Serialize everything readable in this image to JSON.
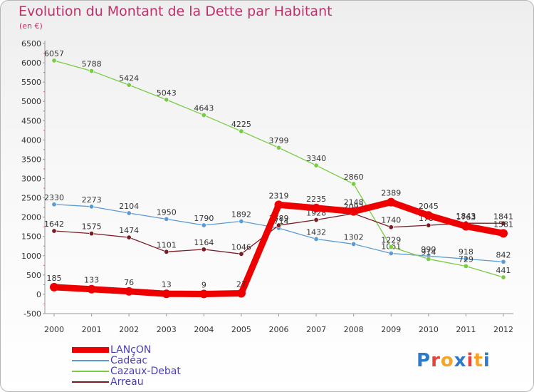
{
  "title": "Evolution du Montant de la Dette par Habitant",
  "subtitle": "(en €)",
  "logo": {
    "text": "Proxiti",
    "colors": [
      "#2e79c8",
      "#e8423c",
      "#f5a32a",
      "#2e79c8",
      "#e8423c",
      "#f5a32a",
      "#2e79c8"
    ]
  },
  "chart_data": {
    "type": "line",
    "title": "Evolution du Montant de la Dette par Habitant",
    "subtitle": "(en €)",
    "x": [
      "2000",
      "2001",
      "2002",
      "2003",
      "2004",
      "2005",
      "2006",
      "2007",
      "2008",
      "2009",
      "2010",
      "2011",
      "2012"
    ],
    "ylim": [
      -500,
      6500
    ],
    "yticks": [
      -500,
      0,
      500,
      1000,
      1500,
      2000,
      2500,
      3000,
      3500,
      4000,
      4500,
      5000,
      5500,
      6000,
      6500
    ],
    "grid": false,
    "legend_position": "bottom-left",
    "series": [
      {
        "name": "LANçON",
        "color": "#ee0000",
        "values": [
          185,
          133,
          76,
          13,
          9,
          27,
          2319,
          2235,
          2148,
          2389,
          2045,
          1763,
          1581
        ]
      },
      {
        "name": "Cadéac",
        "color": "#5b9bd5",
        "values": [
          2330,
          2273,
          2104,
          1950,
          1790,
          1892,
          1714,
          1432,
          1302,
          1061,
          990,
          918,
          842
        ]
      },
      {
        "name": "Cazaux-Debat",
        "color": "#77cc44",
        "values": [
          6057,
          5788,
          5424,
          5043,
          4643,
          4225,
          3799,
          3340,
          2860,
          1229,
          914,
          729,
          441
        ]
      },
      {
        "name": "Arreau",
        "color": "#7a1c24",
        "values": [
          1642,
          1575,
          1474,
          1101,
          1164,
          1046,
          1789,
          1928,
          2092,
          1740,
          1788,
          1843,
          1841
        ]
      }
    ]
  }
}
